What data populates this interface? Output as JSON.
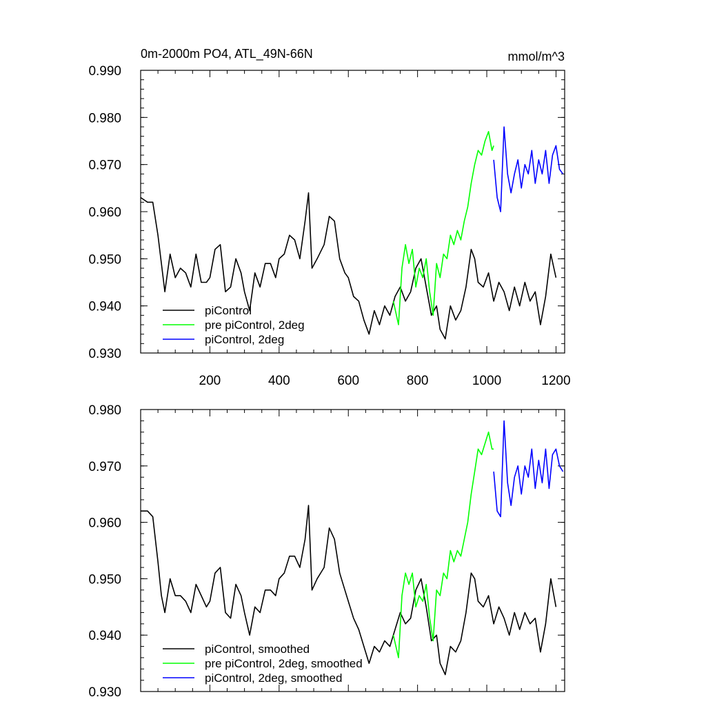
{
  "figure": {
    "title_left": "0m-2000m PO4, ATL_49N-66N",
    "title_right": "mmol/m^3"
  },
  "colors": {
    "piControl": "#000000",
    "pre_piControl_2deg": "#00ff00",
    "piControl_2deg": "#0000ff"
  },
  "chart_data": [
    {
      "type": "line",
      "panel": "raw",
      "xlim": [
        0,
        1225
      ],
      "ylim": [
        0.93,
        0.99
      ],
      "x_ticks": [
        200,
        400,
        600,
        800,
        1000,
        1200
      ],
      "y_ticks": [
        0.93,
        0.94,
        0.95,
        0.96,
        0.97,
        0.98,
        0.99
      ],
      "y_tick_labels": [
        "0.930",
        "0.940",
        "0.950",
        "0.960",
        "0.970",
        "0.980",
        "0.990"
      ],
      "x_tick_labels": [
        "200",
        "400",
        "600",
        "800",
        "1000",
        "1200"
      ],
      "legend_position": "bottom-left",
      "series": [
        {
          "name": "piControl",
          "color": "#000000",
          "x": [
            0,
            20,
            35,
            50,
            60,
            70,
            85,
            100,
            115,
            130,
            145,
            160,
            175,
            190,
            200,
            215,
            230,
            245,
            260,
            275,
            290,
            300,
            315,
            330,
            345,
            360,
            375,
            390,
            400,
            415,
            430,
            445,
            460,
            475,
            485,
            495,
            510,
            530,
            545,
            560,
            575,
            590,
            600,
            615,
            630,
            645,
            660,
            675,
            690,
            705,
            720,
            735,
            750,
            765,
            780,
            795,
            810,
            825,
            840,
            855,
            865,
            880,
            895,
            910,
            925,
            940,
            955,
            965,
            975,
            990,
            1005,
            1020,
            1035,
            1050,
            1065,
            1080,
            1095,
            1110,
            1125,
            1140,
            1155,
            1170,
            1185,
            1200
          ],
          "y": [
            0.963,
            0.962,
            0.962,
            0.955,
            0.949,
            0.943,
            0.951,
            0.946,
            0.948,
            0.947,
            0.944,
            0.951,
            0.945,
            0.945,
            0.946,
            0.952,
            0.953,
            0.943,
            0.944,
            0.95,
            0.947,
            0.943,
            0.939,
            0.947,
            0.944,
            0.949,
            0.949,
            0.946,
            0.95,
            0.951,
            0.955,
            0.954,
            0.95,
            0.958,
            0.964,
            0.948,
            0.95,
            0.953,
            0.959,
            0.958,
            0.95,
            0.947,
            0.946,
            0.942,
            0.941,
            0.937,
            0.934,
            0.939,
            0.936,
            0.94,
            0.938,
            0.942,
            0.944,
            0.941,
            0.943,
            0.948,
            0.95,
            0.944,
            0.938,
            0.94,
            0.935,
            0.933,
            0.94,
            0.937,
            0.939,
            0.944,
            0.952,
            0.95,
            0.945,
            0.944,
            0.947,
            0.941,
            0.945,
            0.943,
            0.939,
            0.944,
            0.94,
            0.945,
            0.941,
            0.943,
            0.936,
            0.942,
            0.951,
            0.946
          ]
        },
        {
          "name": "pre piControl, 2deg",
          "color": "#00ff00",
          "x": [
            730,
            745,
            755,
            765,
            775,
            785,
            795,
            805,
            815,
            825,
            835,
            845,
            855,
            865,
            875,
            885,
            895,
            905,
            915,
            925,
            935,
            945,
            955,
            965,
            975,
            985,
            995,
            1005,
            1015,
            1020
          ],
          "y": [
            0.941,
            0.936,
            0.948,
            0.953,
            0.949,
            0.952,
            0.944,
            0.948,
            0.946,
            0.95,
            0.943,
            0.938,
            0.949,
            0.946,
            0.951,
            0.95,
            0.955,
            0.953,
            0.956,
            0.954,
            0.958,
            0.961,
            0.966,
            0.97,
            0.973,
            0.972,
            0.975,
            0.977,
            0.973,
            0.974
          ]
        },
        {
          "name": "piControl, 2deg",
          "color": "#0000ff",
          "x": [
            1020,
            1030,
            1040,
            1050,
            1060,
            1070,
            1080,
            1090,
            1100,
            1110,
            1120,
            1130,
            1140,
            1150,
            1160,
            1170,
            1180,
            1190,
            1200,
            1210,
            1220
          ],
          "y": [
            0.971,
            0.963,
            0.96,
            0.978,
            0.968,
            0.964,
            0.968,
            0.971,
            0.965,
            0.97,
            0.968,
            0.973,
            0.966,
            0.971,
            0.968,
            0.973,
            0.966,
            0.972,
            0.974,
            0.969,
            0.968
          ]
        }
      ]
    },
    {
      "type": "line",
      "panel": "smoothed",
      "xlim": [
        0,
        1225
      ],
      "ylim": [
        0.93,
        0.98
      ],
      "x_ticks": [
        200,
        400,
        600,
        800,
        1000,
        1200
      ],
      "y_ticks": [
        0.93,
        0.94,
        0.95,
        0.96,
        0.97,
        0.98
      ],
      "y_tick_labels": [
        "0.930",
        "0.940",
        "0.950",
        "0.960",
        "0.970",
        "0.980"
      ],
      "legend_position": "bottom-left",
      "series": [
        {
          "name": "piControl, smoothed",
          "color": "#000000",
          "x": [
            0,
            20,
            35,
            50,
            60,
            70,
            85,
            100,
            115,
            130,
            145,
            160,
            175,
            190,
            200,
            215,
            230,
            245,
            260,
            275,
            290,
            300,
            315,
            330,
            345,
            360,
            375,
            390,
            400,
            415,
            430,
            445,
            460,
            475,
            485,
            495,
            510,
            530,
            545,
            560,
            575,
            590,
            600,
            615,
            630,
            645,
            660,
            675,
            690,
            705,
            720,
            735,
            750,
            765,
            780,
            795,
            810,
            825,
            840,
            855,
            865,
            880,
            895,
            910,
            925,
            940,
            955,
            965,
            975,
            990,
            1005,
            1020,
            1035,
            1050,
            1065,
            1080,
            1095,
            1110,
            1125,
            1140,
            1155,
            1170,
            1185,
            1200
          ],
          "y": [
            0.962,
            0.962,
            0.961,
            0.953,
            0.947,
            0.944,
            0.95,
            0.947,
            0.947,
            0.946,
            0.944,
            0.949,
            0.947,
            0.945,
            0.946,
            0.951,
            0.952,
            0.944,
            0.943,
            0.949,
            0.947,
            0.944,
            0.94,
            0.945,
            0.944,
            0.948,
            0.948,
            0.947,
            0.95,
            0.951,
            0.954,
            0.954,
            0.952,
            0.957,
            0.963,
            0.948,
            0.95,
            0.952,
            0.959,
            0.957,
            0.951,
            0.948,
            0.946,
            0.943,
            0.941,
            0.938,
            0.935,
            0.938,
            0.937,
            0.939,
            0.938,
            0.941,
            0.944,
            0.942,
            0.943,
            0.948,
            0.95,
            0.945,
            0.939,
            0.94,
            0.935,
            0.933,
            0.938,
            0.937,
            0.939,
            0.944,
            0.951,
            0.95,
            0.946,
            0.945,
            0.947,
            0.942,
            0.945,
            0.943,
            0.94,
            0.944,
            0.941,
            0.944,
            0.942,
            0.943,
            0.937,
            0.942,
            0.95,
            0.945
          ]
        },
        {
          "name": "pre piControl, 2deg, smoothed",
          "color": "#00ff00",
          "x": [
            730,
            745,
            755,
            765,
            775,
            785,
            795,
            805,
            815,
            825,
            835,
            845,
            855,
            865,
            875,
            885,
            895,
            905,
            915,
            925,
            935,
            945,
            955,
            965,
            975,
            985,
            995,
            1005,
            1015,
            1020
          ],
          "y": [
            0.94,
            0.936,
            0.947,
            0.951,
            0.949,
            0.951,
            0.945,
            0.947,
            0.946,
            0.949,
            0.943,
            0.939,
            0.948,
            0.947,
            0.951,
            0.95,
            0.955,
            0.953,
            0.955,
            0.954,
            0.957,
            0.96,
            0.965,
            0.969,
            0.973,
            0.972,
            0.974,
            0.976,
            0.973,
            0.973
          ]
        },
        {
          "name": "piControl, 2deg, smoothed",
          "color": "#0000ff",
          "x": [
            1020,
            1030,
            1040,
            1050,
            1060,
            1070,
            1080,
            1090,
            1100,
            1110,
            1120,
            1130,
            1140,
            1150,
            1160,
            1170,
            1180,
            1190,
            1200,
            1210,
            1220
          ],
          "y": [
            0.969,
            0.962,
            0.961,
            0.978,
            0.967,
            0.963,
            0.968,
            0.97,
            0.965,
            0.97,
            0.968,
            0.973,
            0.966,
            0.971,
            0.967,
            0.973,
            0.966,
            0.972,
            0.973,
            0.97,
            0.969
          ]
        }
      ]
    }
  ]
}
